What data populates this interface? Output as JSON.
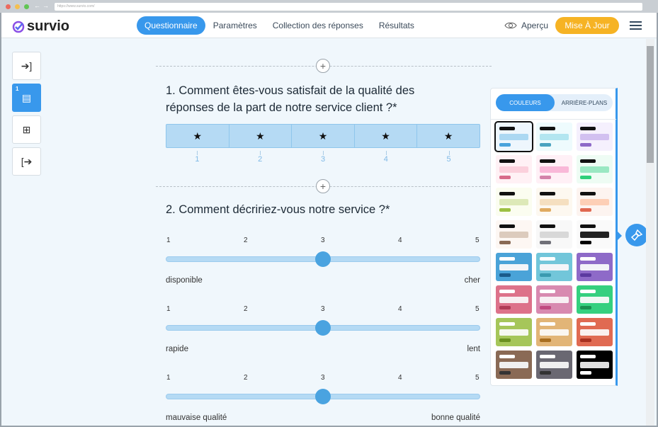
{
  "browser": {
    "url": "https://www.survio.com/"
  },
  "header": {
    "logo": "survio",
    "tabs": [
      "Questionnaire",
      "Paramètres",
      "Collection des réponses",
      "Résultats"
    ],
    "active_tab": 0,
    "preview": "Aperçu",
    "update": "Mise À Jour"
  },
  "sidebar": {
    "items": [
      {
        "icon": "enter-icon"
      },
      {
        "icon": "page-icon",
        "badge": "1",
        "active": true
      },
      {
        "icon": "add-page-icon"
      },
      {
        "icon": "exit-icon"
      }
    ]
  },
  "questions": [
    {
      "title": "1. Comment êtes-vous satisfait de la qualité des réponses de la part de notre service client ?*",
      "type": "stars",
      "scale": [
        "1",
        "2",
        "3",
        "4",
        "5"
      ]
    },
    {
      "title": "2. Comment décririez-vous notre service ?*",
      "type": "sliders",
      "sliders": [
        {
          "scale": [
            "1",
            "2",
            "3",
            "4",
            "5"
          ],
          "value": 3,
          "left": "disponible",
          "right": "cher"
        },
        {
          "scale": [
            "1",
            "2",
            "3",
            "4",
            "5"
          ],
          "value": 3,
          "left": "rapide",
          "right": "lent"
        },
        {
          "scale": [
            "1",
            "2",
            "3",
            "4",
            "5"
          ],
          "value": 3,
          "left": "mauvaise qualité",
          "right": "bonne qualité"
        }
      ]
    }
  ],
  "panel": {
    "tab_colors": "COULEURS",
    "tab_backgrounds": "ARRIÈRE-PLANS",
    "selected": 0,
    "themes": [
      [
        "#eef6fd",
        "#111111",
        "#acd8f2",
        "#4aa3dc"
      ],
      [
        "#eefbfd",
        "#111111",
        "#b3e6f0",
        "#4aa3c0"
      ],
      [
        "#f5f0fd",
        "#111111",
        "#d2c0f0",
        "#8e6ac8"
      ],
      [
        "#fff1f5",
        "#111111",
        "#fbd0dc",
        "#d86b8a"
      ],
      [
        "#fff0f6",
        "#111111",
        "#f9b8d8",
        "#d382aa"
      ],
      [
        "#eefcf4",
        "#111111",
        "#9ae8c2",
        "#2ecf7a"
      ],
      [
        "#fbfdf0",
        "#111111",
        "#dde9b8",
        "#9cc042"
      ],
      [
        "#fdf8f0",
        "#111111",
        "#f5dfc0",
        "#e0aa60"
      ],
      [
        "#fdf4f0",
        "#111111",
        "#fdcfb6",
        "#e06850"
      ],
      [
        "#fdf7f3",
        "#111111",
        "#dccbbd",
        "#8a6a55"
      ],
      [
        "#f8f8f8",
        "#111111",
        "#d8d8d8",
        "#707078"
      ],
      [
        "#fafafa",
        "#111111",
        "#222222",
        "#000000"
      ],
      [
        "#4aa3d8",
        "#ffffff",
        "#f3f5f8",
        "#1a5a8a"
      ],
      [
        "#72c6da",
        "#ffffff",
        "#f3f5f8",
        "#3a9ab0"
      ],
      [
        "#8e6ac8",
        "#ffffff",
        "#f3f3f8",
        "#5c3aa0"
      ],
      [
        "#dd728a",
        "#ffffff",
        "#f8f0f2",
        "#b03a55"
      ],
      [
        "#d88ab0",
        "#ffffff",
        "#f8f0f4",
        "#c04a80"
      ],
      [
        "#35d07f",
        "#ffffff",
        "#f0f8f4",
        "#1a9050"
      ],
      [
        "#a6c65a",
        "#ffffff",
        "#f6f8f0",
        "#6a9020"
      ],
      [
        "#e2b577",
        "#ffffff",
        "#faf6f0",
        "#a86e20"
      ],
      [
        "#e06a52",
        "#ffffff",
        "#faf0ee",
        "#a83020"
      ],
      [
        "#8a6a55",
        "#ffffff",
        "#f0f0f0",
        "#333333"
      ],
      [
        "#6a6872",
        "#ffffff",
        "#f0f0f0",
        "#333333"
      ],
      [
        "#000000",
        "#ffffff",
        "#e0e0e0",
        "#ffffff"
      ]
    ]
  },
  "colors": {
    "accent": "#3898ec",
    "update": "#f6b324"
  }
}
